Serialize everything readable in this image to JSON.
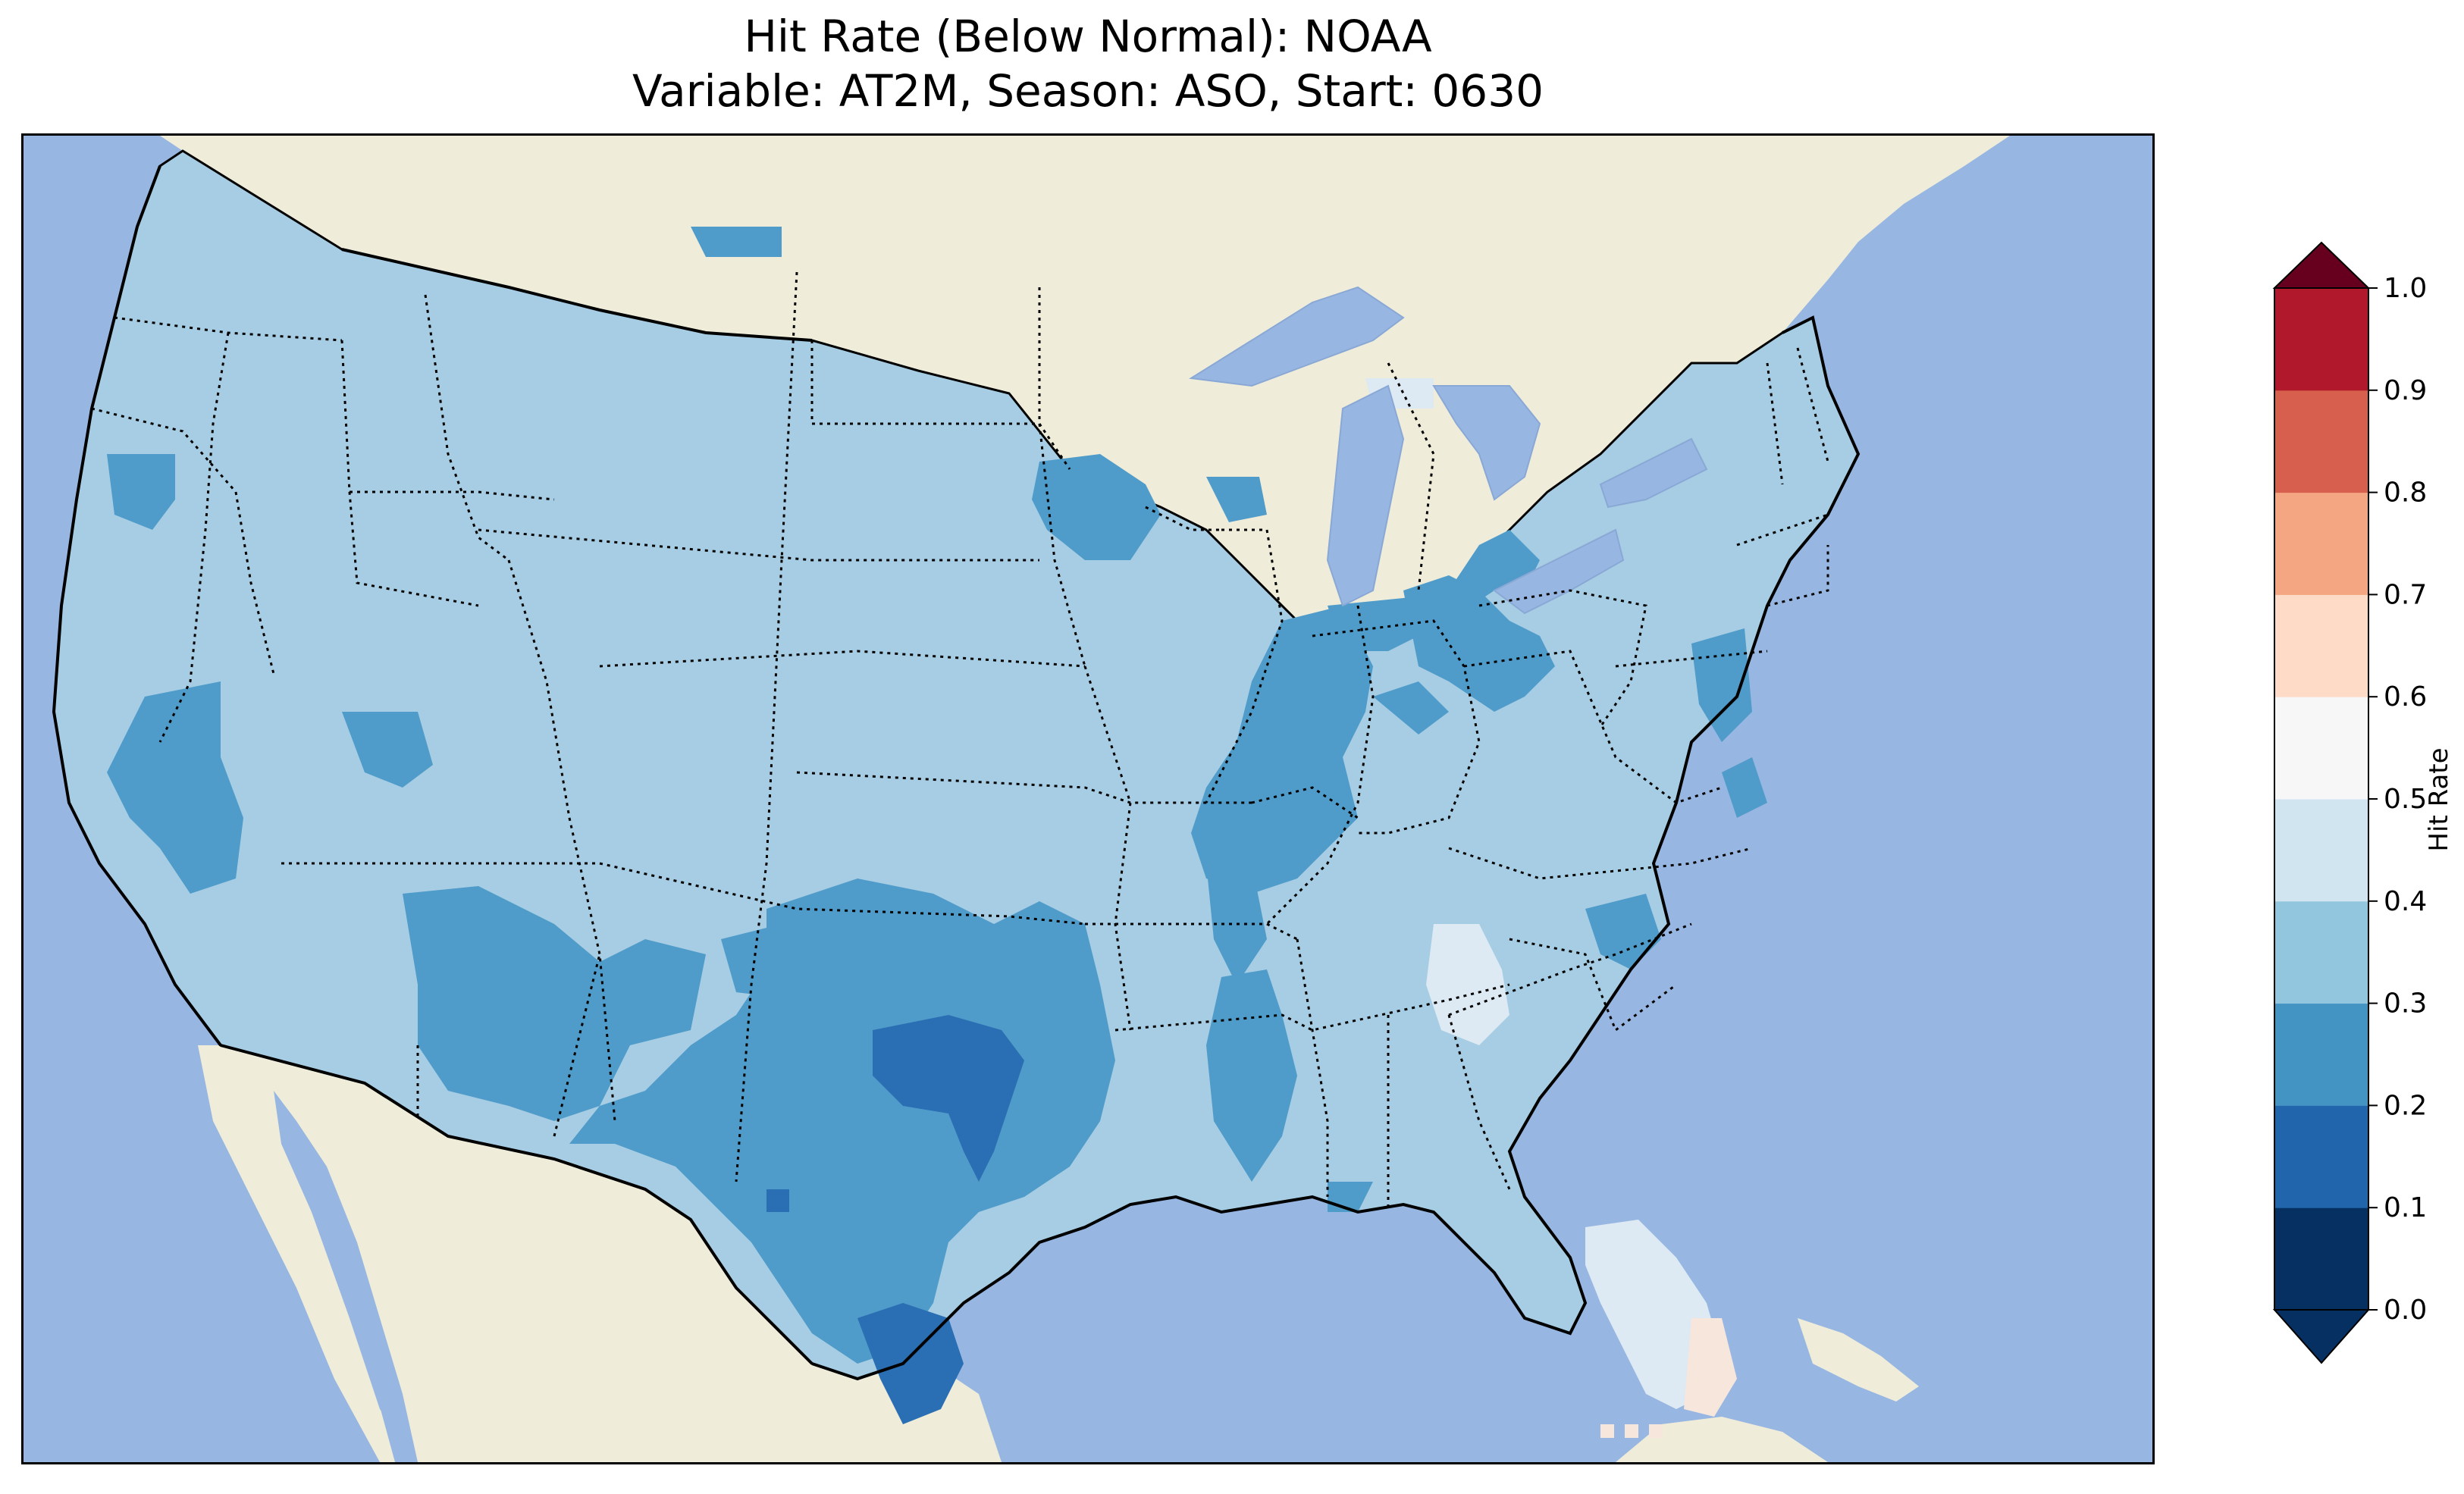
{
  "title": {
    "line1": "Hit Rate (Below Normal): NOAA",
    "line2": "Variable: AT2M, Season: ASO, Start: 0630"
  },
  "map": {
    "ocean_color": "#97b6e1",
    "land_color": "#efedda",
    "border_color": "#000000"
  },
  "colorbar": {
    "label": "Hit Rate",
    "ticks": [
      "0.0",
      "0.1",
      "0.2",
      "0.3",
      "0.4",
      "0.5",
      "0.6",
      "0.7",
      "0.8",
      "0.9",
      "1.0"
    ],
    "bins": [
      {
        "range": [
          0.0,
          0.1
        ],
        "color": "#053061"
      },
      {
        "range": [
          0.1,
          0.2
        ],
        "color": "#2166ac"
      },
      {
        "range": [
          0.2,
          0.3
        ],
        "color": "#4393c3"
      },
      {
        "range": [
          0.3,
          0.4
        ],
        "color": "#92c5de"
      },
      {
        "range": [
          0.4,
          0.5
        ],
        "color": "#d1e5f0"
      },
      {
        "range": [
          0.5,
          0.6
        ],
        "color": "#f7f7f7"
      },
      {
        "range": [
          0.6,
          0.7
        ],
        "color": "#fddbc7"
      },
      {
        "range": [
          0.7,
          0.8
        ],
        "color": "#f4a582"
      },
      {
        "range": [
          0.8,
          0.9
        ],
        "color": "#d6604d"
      },
      {
        "range": [
          0.9,
          1.0
        ],
        "color": "#b2182b"
      }
    ],
    "under_color": "#053061",
    "over_color": "#67001f"
  }
}
